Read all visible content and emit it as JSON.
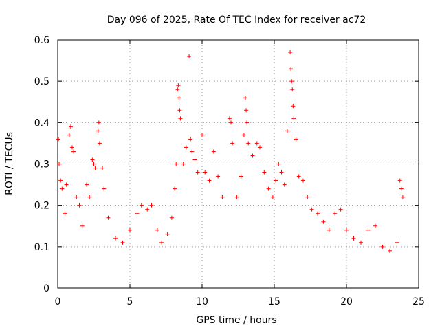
{
  "chart_data": {
    "type": "scatter",
    "title": "Day 096 of 2025, Rate Of TEC Index for receiver ac72",
    "xlabel": "GPS time / hours",
    "ylabel": "ROTI / TECUs",
    "xlim": [
      0,
      25
    ],
    "ylim": [
      0,
      0.6
    ],
    "x_ticks": [
      0,
      5,
      10,
      15,
      20,
      25
    ],
    "y_ticks": [
      0,
      0.1,
      0.2,
      0.3,
      0.4,
      0.5,
      0.6
    ],
    "x_tick_labels": [
      "0",
      "5",
      "10",
      "15",
      "20",
      "25"
    ],
    "y_tick_labels": [
      "0",
      "0.1",
      "0.2",
      "0.3",
      "0.4",
      "0.5",
      "0.6"
    ],
    "grid": true,
    "marker": "plus",
    "series": [
      {
        "color": "#ff0000",
        "points": [
          [
            0.05,
            0.36
          ],
          [
            0.1,
            0.3
          ],
          [
            0.2,
            0.26
          ],
          [
            0.3,
            0.24
          ],
          [
            0.5,
            0.18
          ],
          [
            0.6,
            0.25
          ],
          [
            0.8,
            0.37
          ],
          [
            0.9,
            0.39
          ],
          [
            1.0,
            0.34
          ],
          [
            1.1,
            0.33
          ],
          [
            1.3,
            0.22
          ],
          [
            1.5,
            0.2
          ],
          [
            1.7,
            0.15
          ],
          [
            2.0,
            0.25
          ],
          [
            2.2,
            0.22
          ],
          [
            2.4,
            0.31
          ],
          [
            2.5,
            0.3
          ],
          [
            2.6,
            0.29
          ],
          [
            2.8,
            0.38
          ],
          [
            2.85,
            0.4
          ],
          [
            2.9,
            0.35
          ],
          [
            3.1,
            0.29
          ],
          [
            3.2,
            0.24
          ],
          [
            3.5,
            0.17
          ],
          [
            4.0,
            0.12
          ],
          [
            4.5,
            0.11
          ],
          [
            5.0,
            0.14
          ],
          [
            5.5,
            0.18
          ],
          [
            5.8,
            0.2
          ],
          [
            6.2,
            0.19
          ],
          [
            6.5,
            0.2
          ],
          [
            6.9,
            0.14
          ],
          [
            7.2,
            0.11
          ],
          [
            7.6,
            0.13
          ],
          [
            7.9,
            0.17
          ],
          [
            8.1,
            0.24
          ],
          [
            8.2,
            0.3
          ],
          [
            8.3,
            0.48
          ],
          [
            8.35,
            0.49
          ],
          [
            8.4,
            0.46
          ],
          [
            8.45,
            0.43
          ],
          [
            8.5,
            0.41
          ],
          [
            8.7,
            0.3
          ],
          [
            8.9,
            0.34
          ],
          [
            9.1,
            0.56
          ],
          [
            9.2,
            0.36
          ],
          [
            9.3,
            0.33
          ],
          [
            9.5,
            0.31
          ],
          [
            9.7,
            0.28
          ],
          [
            10.0,
            0.37
          ],
          [
            10.2,
            0.28
          ],
          [
            10.5,
            0.26
          ],
          [
            10.8,
            0.33
          ],
          [
            11.1,
            0.27
          ],
          [
            11.4,
            0.22
          ],
          [
            11.9,
            0.41
          ],
          [
            12.0,
            0.4
          ],
          [
            12.1,
            0.35
          ],
          [
            12.4,
            0.22
          ],
          [
            12.7,
            0.27
          ],
          [
            12.9,
            0.37
          ],
          [
            13.0,
            0.46
          ],
          [
            13.05,
            0.43
          ],
          [
            13.1,
            0.4
          ],
          [
            13.2,
            0.35
          ],
          [
            13.5,
            0.32
          ],
          [
            13.8,
            0.35
          ],
          [
            14.0,
            0.34
          ],
          [
            14.3,
            0.28
          ],
          [
            14.6,
            0.24
          ],
          [
            14.9,
            0.22
          ],
          [
            15.1,
            0.26
          ],
          [
            15.3,
            0.3
          ],
          [
            15.5,
            0.28
          ],
          [
            15.7,
            0.25
          ],
          [
            15.9,
            0.38
          ],
          [
            16.1,
            0.57
          ],
          [
            16.15,
            0.53
          ],
          [
            16.2,
            0.5
          ],
          [
            16.25,
            0.48
          ],
          [
            16.3,
            0.44
          ],
          [
            16.35,
            0.41
          ],
          [
            16.5,
            0.36
          ],
          [
            16.7,
            0.27
          ],
          [
            17.0,
            0.26
          ],
          [
            17.3,
            0.22
          ],
          [
            17.6,
            0.19
          ],
          [
            18.0,
            0.18
          ],
          [
            18.4,
            0.16
          ],
          [
            18.8,
            0.14
          ],
          [
            19.2,
            0.18
          ],
          [
            19.6,
            0.19
          ],
          [
            20.0,
            0.14
          ],
          [
            20.5,
            0.12
          ],
          [
            21.0,
            0.11
          ],
          [
            21.5,
            0.14
          ],
          [
            22.0,
            0.15
          ],
          [
            22.5,
            0.1
          ],
          [
            23.0,
            0.09
          ],
          [
            23.5,
            0.11
          ],
          [
            23.7,
            0.26
          ],
          [
            23.8,
            0.24
          ],
          [
            23.9,
            0.22
          ]
        ]
      }
    ]
  }
}
